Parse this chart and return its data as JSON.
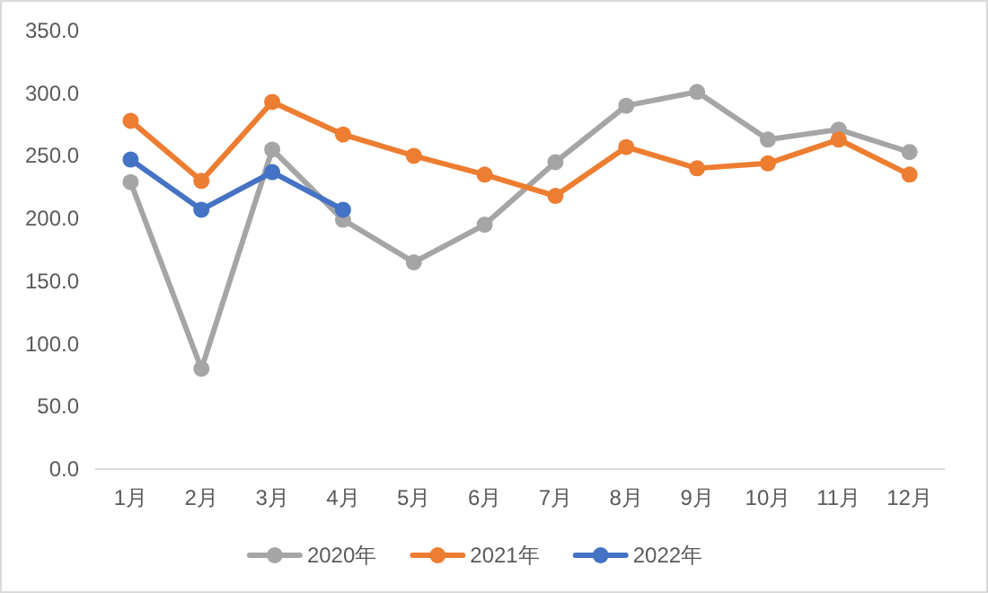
{
  "chart_data": {
    "type": "line",
    "categories": [
      "1月",
      "2月",
      "3月",
      "4月",
      "5月",
      "6月",
      "7月",
      "8月",
      "9月",
      "10月",
      "11月",
      "12月"
    ],
    "series": [
      {
        "name": "2020年",
        "color": "#a5a5a5",
        "values": [
          229,
          80,
          255,
          199,
          165,
          195,
          245,
          290,
          301,
          263,
          271,
          253
        ]
      },
      {
        "name": "2021年",
        "color": "#ed7d31",
        "values": [
          278,
          230,
          293,
          267,
          250,
          235,
          218,
          257,
          240,
          244,
          263,
          235
        ]
      },
      {
        "name": "2022年",
        "color": "#4472c4",
        "values": [
          247,
          207,
          237,
          207,
          null,
          null,
          null,
          null,
          null,
          null,
          null,
          null
        ]
      }
    ],
    "ylim": [
      0,
      350
    ],
    "yticks": [
      {
        "value": 0,
        "label": "0.0"
      },
      {
        "value": 50,
        "label": "50.0"
      },
      {
        "value": 100,
        "label": "100.0"
      },
      {
        "value": 150,
        "label": "150.0"
      },
      {
        "value": 200,
        "label": "200.0"
      },
      {
        "value": 250,
        "label": "250.0"
      },
      {
        "value": 300,
        "label": "300.0"
      },
      {
        "value": 350,
        "label": "350.0"
      }
    ],
    "grid": false,
    "legend": "bottom",
    "marker": "circle",
    "line_style": "solid"
  }
}
